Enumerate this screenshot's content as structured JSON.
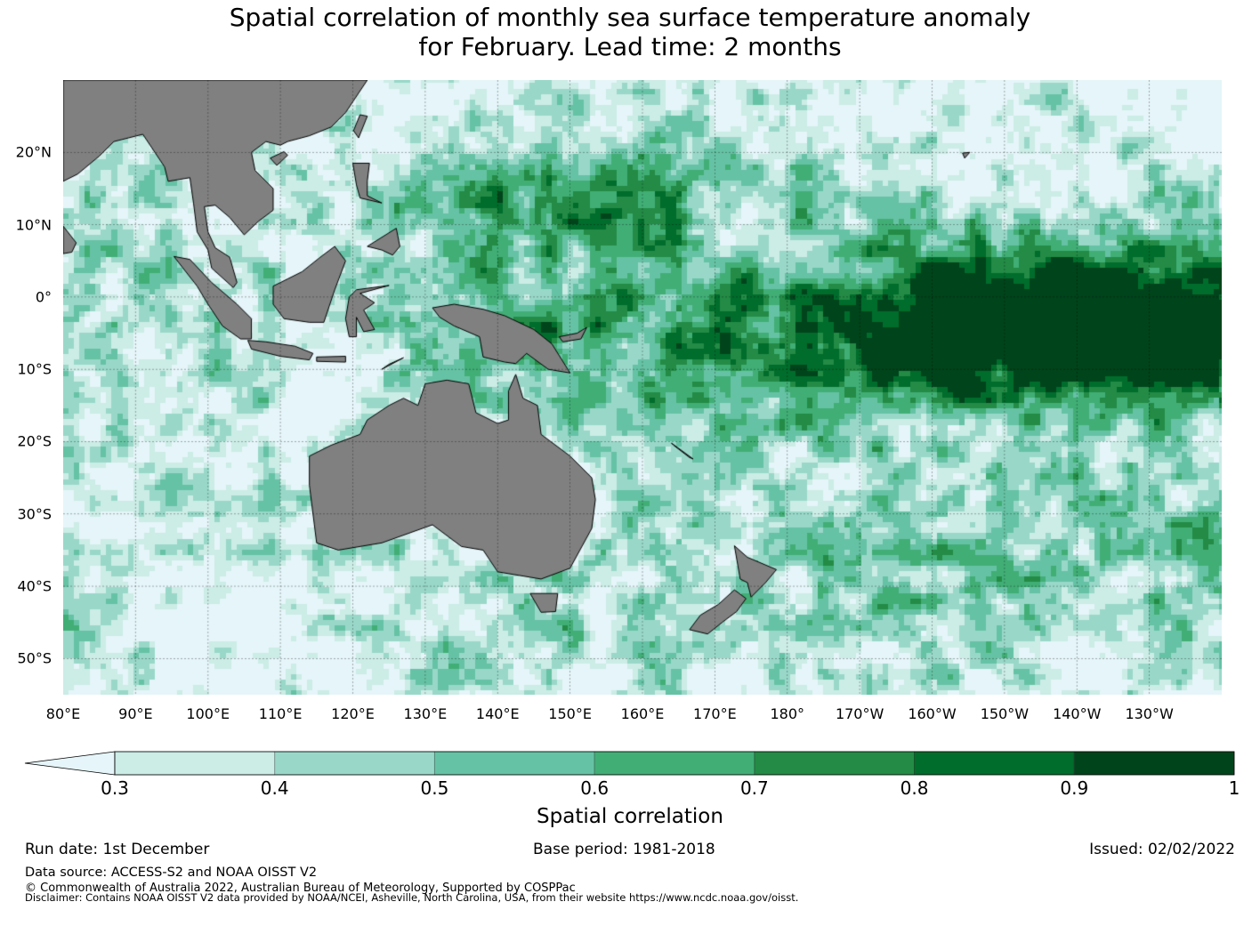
{
  "title": {
    "line1": "Spatial correlation of monthly sea surface temperature anomaly",
    "line2": "for February. Lead time: 2 months"
  },
  "map": {
    "lon_labels": [
      "80°E",
      "90°E",
      "100°E",
      "110°E",
      "120°E",
      "130°E",
      "140°E",
      "150°E",
      "160°E",
      "170°E",
      "180°",
      "170°W",
      "160°W",
      "150°W",
      "140°W",
      "130°W"
    ],
    "lat_labels": [
      "20°N",
      "10°N",
      "0°",
      "10°S",
      "20°S",
      "30°S",
      "40°S",
      "50°S"
    ],
    "lon_range_deg_east": [
      80,
      240
    ],
    "lat_range_deg": [
      -55,
      30
    ],
    "land_color": "#808080"
  },
  "colorbar": {
    "label": "Spatial correlation",
    "ticks": [
      "0.3",
      "0.4",
      "0.5",
      "0.6",
      "0.7",
      "0.8",
      "0.9",
      "1"
    ],
    "levels": [
      0.3,
      0.4,
      0.5,
      0.6,
      0.7,
      0.8,
      0.9,
      1.0
    ],
    "under_color": "#e5f5f9",
    "colors": [
      "#ccece6",
      "#99d8c9",
      "#66c2a4",
      "#41ae76",
      "#238b45",
      "#006d2c",
      "#00441b"
    ],
    "extend": "min"
  },
  "footer": {
    "run_date": "Run date: 1st December",
    "base_period": "Base period: 1981-2018",
    "issued": "Issued: 02/02/2022",
    "data_source": "Data source: ACCESS-S2 and NOAA OISST V2",
    "copyright": "© Commonwealth of Australia 2022, Australian Bureau of Meteorology, Supported by COSPPac",
    "disclaimer": "Disclaimer: Contains NOAA OISST V2 data provided by NOAA/NCEI, Asheville, North Carolina, USA, from their website https://www.ncdc.noaa.gov/oisst."
  }
}
